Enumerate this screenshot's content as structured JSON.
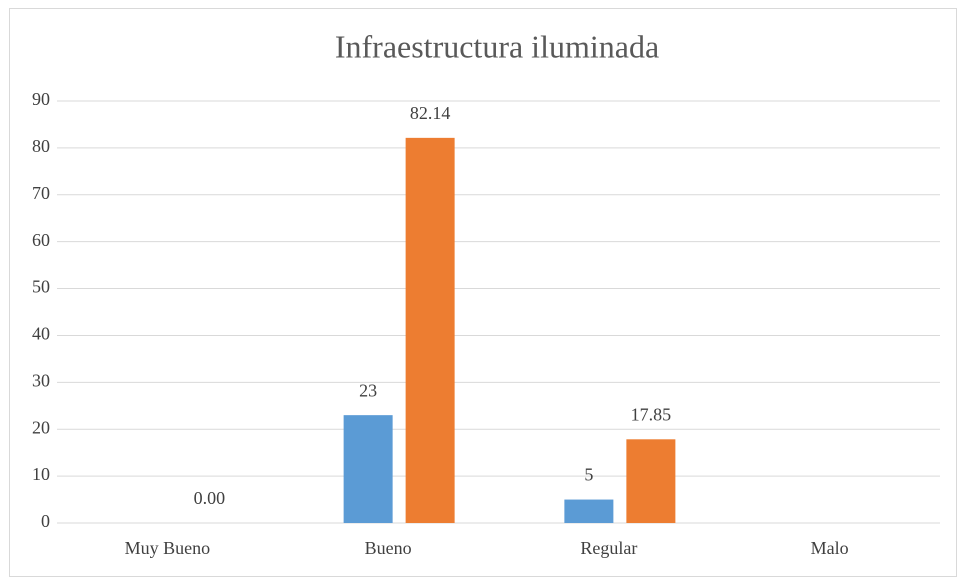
{
  "chart_data": {
    "type": "bar",
    "title": "Infraestructura iluminada",
    "categories": [
      "Muy Bueno",
      "Bueno",
      "Regular",
      "Malo"
    ],
    "series": [
      {
        "color": "#5b9bd5",
        "values": [
          null,
          23,
          5,
          null
        ]
      },
      {
        "color": "#ed7d31",
        "values": [
          0,
          82.14,
          17.85,
          null
        ],
        "value_labels": [
          "0.00",
          "82.14",
          "17.85",
          null
        ]
      }
    ],
    "ylim": [
      0,
      90
    ],
    "yticks": [
      0,
      10,
      20,
      30,
      40,
      50,
      60,
      70,
      80,
      90
    ],
    "grid": true
  }
}
